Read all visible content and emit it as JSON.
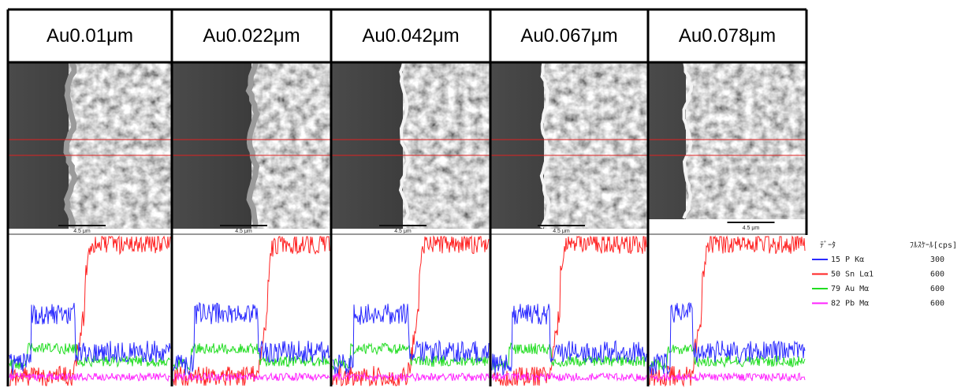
{
  "columns": [
    {
      "label": "Au0.01μm",
      "scale_bar": "4.5 μm"
    },
    {
      "label": "Au0.022μm",
      "scale_bar": "4.5 μm"
    },
    {
      "label": "Au0.042μm",
      "scale_bar": "4.5 μm"
    },
    {
      "label": "Au0.067μm",
      "scale_bar": "4.5 μm"
    },
    {
      "label": "Au0.078μm",
      "scale_bar": "4.5 μm"
    }
  ],
  "legend": {
    "header": [
      "ﾃﾞｰﾀ",
      "ﾌﾙｽｹｰﾙ[cps]"
    ],
    "rows": [
      {
        "label": "15 P Kα",
        "full_scale": 300
      },
      {
        "label": "50 Sn Lα1",
        "full_scale": 600
      },
      {
        "label": "79 Au Mα",
        "full_scale": 600
      },
      {
        "label": "82 Pb Mα",
        "full_scale": 600
      }
    ]
  }
}
